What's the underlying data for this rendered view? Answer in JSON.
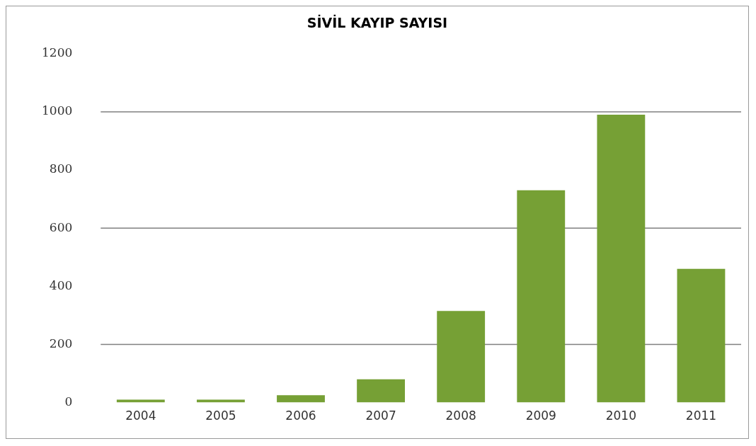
{
  "chart_data": {
    "type": "bar",
    "title": "SİVİL KAYIP SAYISI",
    "categories": [
      "2004",
      "2005",
      "2006",
      "2007",
      "2008",
      "2009",
      "2010",
      "2011"
    ],
    "values": [
      10,
      10,
      25,
      80,
      315,
      730,
      990,
      460
    ],
    "color": "#76a035",
    "ylim": [
      0,
      1200
    ],
    "yticks": [
      0,
      200,
      400,
      600,
      800,
      1000,
      1200
    ],
    "grid": false,
    "ref_lines": [
      {
        "axis": "y",
        "value": 200,
        "color": "#808080"
      },
      {
        "axis": "y",
        "value": 600,
        "color": "#808080"
      },
      {
        "axis": "y",
        "value": 1000,
        "color": "#808080"
      }
    ]
  }
}
